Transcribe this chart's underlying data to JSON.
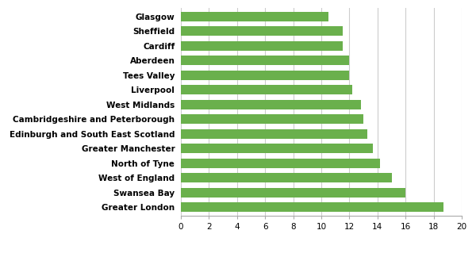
{
  "categories": [
    "Greater London",
    "Swansea Bay",
    "West of England",
    "North of Tyne",
    "Greater Manchester",
    "Edinburgh and South East Scotland",
    "Cambridgeshire and Peterborough",
    "West Midlands",
    "Liverpool",
    "Tees Valley",
    "Aberdeen",
    "Cardiff",
    "Sheffield",
    "Glasgow"
  ],
  "values": [
    18.7,
    16.0,
    15.0,
    14.2,
    13.7,
    13.3,
    13.0,
    12.8,
    12.2,
    12.0,
    12.0,
    11.5,
    11.5,
    10.5
  ],
  "bar_color": "#6ab04c",
  "bar_height": 0.65,
  "xlim": [
    0,
    20
  ],
  "xticks": [
    0,
    2,
    4,
    6,
    8,
    10,
    12,
    14,
    16,
    18,
    20
  ],
  "grid_color": "#cccccc",
  "background_color": "#ffffff",
  "legend_label": "%",
  "legend_color": "#6ab04c",
  "tick_fontsize": 7.5,
  "ylabel_fontsize": 7.5
}
